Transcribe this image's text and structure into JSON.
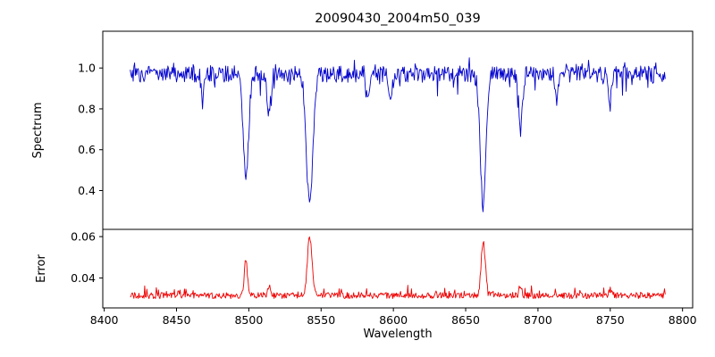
{
  "chart_data": {
    "type": "line",
    "title": "20090430_2004m50_039",
    "xlabel": "Wavelength",
    "xlim": [
      8399,
      8807
    ],
    "x_range_data": [
      8418,
      8788
    ],
    "xticks": [
      8400,
      8450,
      8500,
      8550,
      8600,
      8650,
      8700,
      8750,
      8800
    ],
    "grid": false,
    "legend": "none",
    "panels": [
      {
        "name": "spectrum",
        "ylabel": "Spectrum",
        "color": "#0000cd",
        "ylim": [
          0.21,
          1.18
        ],
        "yticks": [
          {
            "v": 0.4,
            "label": "0.4"
          },
          {
            "v": 0.6,
            "label": "0.6"
          },
          {
            "v": 0.8,
            "label": "0.8"
          },
          {
            "v": 1.0,
            "label": "1.0"
          }
        ],
        "baseline": 0.97,
        "noise_amplitude": 0.04,
        "absorption_lines": [
          {
            "center": 8468.0,
            "depth": 0.14,
            "sigma": 1.0
          },
          {
            "center": 8498.0,
            "depth": 0.52,
            "sigma": 1.8
          },
          {
            "center": 8514.0,
            "depth": 0.2,
            "sigma": 1.2
          },
          {
            "center": 8542.1,
            "depth": 0.64,
            "sigma": 2.2
          },
          {
            "center": 8582.0,
            "depth": 0.12,
            "sigma": 1.2
          },
          {
            "center": 8598.0,
            "depth": 0.1,
            "sigma": 1.0
          },
          {
            "center": 8662.1,
            "depth": 0.64,
            "sigma": 2.0
          },
          {
            "center": 8688.0,
            "depth": 0.27,
            "sigma": 1.3
          },
          {
            "center": 8713.0,
            "depth": 0.12,
            "sigma": 1.0
          },
          {
            "center": 8750.0,
            "depth": 0.13,
            "sigma": 1.1
          }
        ]
      },
      {
        "name": "error",
        "ylabel": "Error",
        "color": "#ee0000",
        "ylim": [
          0.0255,
          0.0635
        ],
        "yticks": [
          {
            "v": 0.04,
            "label": "0.04"
          },
          {
            "v": 0.06,
            "label": "0.06"
          }
        ],
        "baseline": 0.0315,
        "noise_amplitude": 0.0015,
        "peaks": [
          {
            "center": 8498.0,
            "height": 0.018,
            "sigma": 1.0
          },
          {
            "center": 8514.0,
            "height": 0.0035,
            "sigma": 0.9
          },
          {
            "center": 8542.1,
            "height": 0.0285,
            "sigma": 1.6
          },
          {
            "center": 8662.1,
            "height": 0.026,
            "sigma": 1.4
          },
          {
            "center": 8688.0,
            "height": 0.004,
            "sigma": 1.0
          },
          {
            "center": 8750.0,
            "height": 0.003,
            "sigma": 1.0
          }
        ]
      }
    ]
  }
}
